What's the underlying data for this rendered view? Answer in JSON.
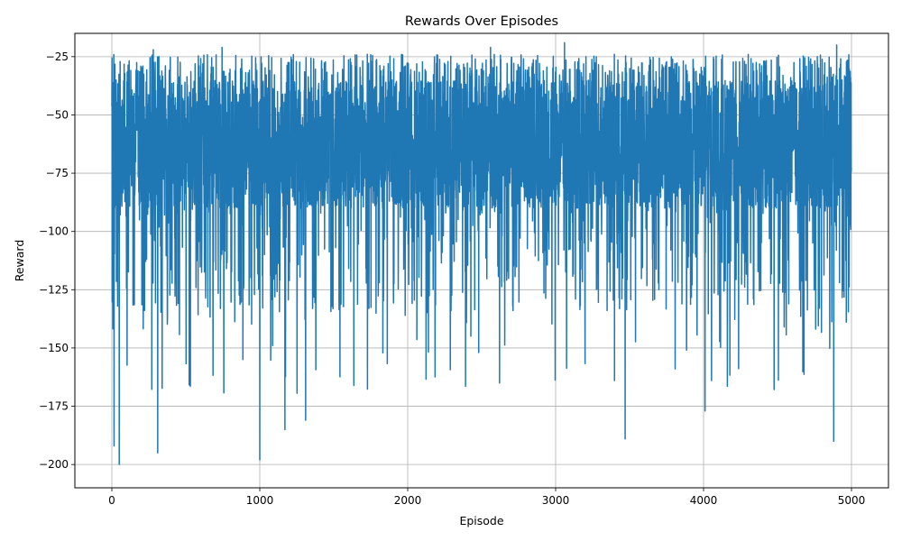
{
  "chart_data": {
    "type": "line",
    "title": "Rewards Over Episodes",
    "xlabel": "Episode",
    "ylabel": "Reward",
    "xlim": [
      -250,
      5250
    ],
    "ylim": [
      -210,
      -15
    ],
    "xticks": [
      0,
      1000,
      2000,
      3000,
      4000,
      5000
    ],
    "yticks": [
      -25,
      -50,
      -75,
      -100,
      -125,
      -150,
      -175,
      -200
    ],
    "xtick_labels": [
      "0",
      "1000",
      "2000",
      "3000",
      "4000",
      "5000"
    ],
    "ytick_labels": [
      "−25",
      "−50",
      "−75",
      "−100",
      "−125",
      "−150",
      "−175",
      "−200"
    ],
    "grid": true,
    "series": [
      {
        "color": "#1f77b4",
        "n_points": 5000,
        "x_start": 0,
        "x_end": 4999,
        "typical_range": [
          -90,
          -35
        ],
        "max": -19,
        "min": -200,
        "extremes": [
          {
            "x": 15,
            "y": -192
          },
          {
            "x": 50,
            "y": -200
          },
          {
            "x": 310,
            "y": -195
          },
          {
            "x": 1000,
            "y": -198
          },
          {
            "x": 1170,
            "y": -185
          },
          {
            "x": 1310,
            "y": -181
          },
          {
            "x": 3470,
            "y": -189
          },
          {
            "x": 4010,
            "y": -177
          },
          {
            "x": 4880,
            "y": -190
          },
          {
            "x": 4900,
            "y": -20
          },
          {
            "x": 3060,
            "y": -19
          },
          {
            "x": 745,
            "y": -21
          },
          {
            "x": 2560,
            "y": -21
          },
          {
            "x": 280,
            "y": -22
          }
        ]
      }
    ]
  }
}
